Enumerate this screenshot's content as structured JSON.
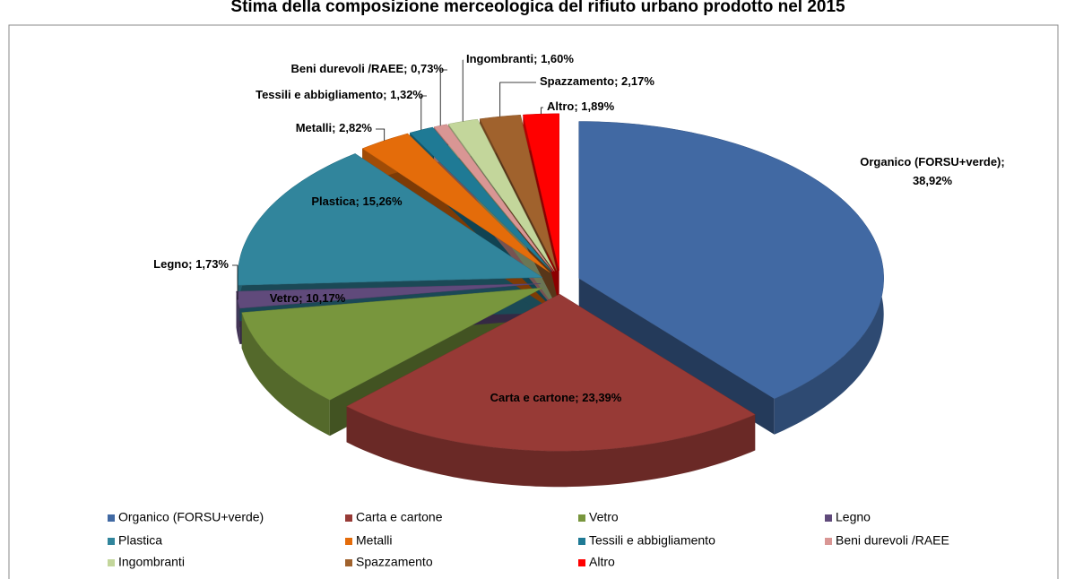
{
  "chart_data": {
    "type": "pie3d",
    "title": "Stima della composizione merceologica del rifiuto urbano prodotto nel 2015",
    "categories": [
      "Organico (FORSU+verde)",
      "Carta e cartone",
      "Vetro",
      "Legno",
      "Plastica",
      "Metalli",
      "Tessili e abbigliamento",
      "Beni durevoli /RAEE",
      "Ingombranti",
      "Spazzamento",
      "Altro"
    ],
    "values": [
      38.92,
      23.39,
      10.17,
      1.73,
      15.26,
      2.82,
      1.32,
      0.73,
      1.6,
      2.17,
      1.89
    ],
    "value_labels": [
      "38,92%",
      "23,39%",
      "10,17%",
      "1,73%",
      "15,26%",
      "2,82%",
      "1,32%",
      "0,73%",
      "1,60%",
      "2,17%",
      "1,89%"
    ],
    "colors": [
      "#4169a3",
      "#973a36",
      "#78963d",
      "#604a7b",
      "#31859c",
      "#e46c0a",
      "#1f7a95",
      "#d99694",
      "#c3d69b",
      "#a0622d",
      "#ff0000"
    ],
    "legend": "bottom"
  }
}
